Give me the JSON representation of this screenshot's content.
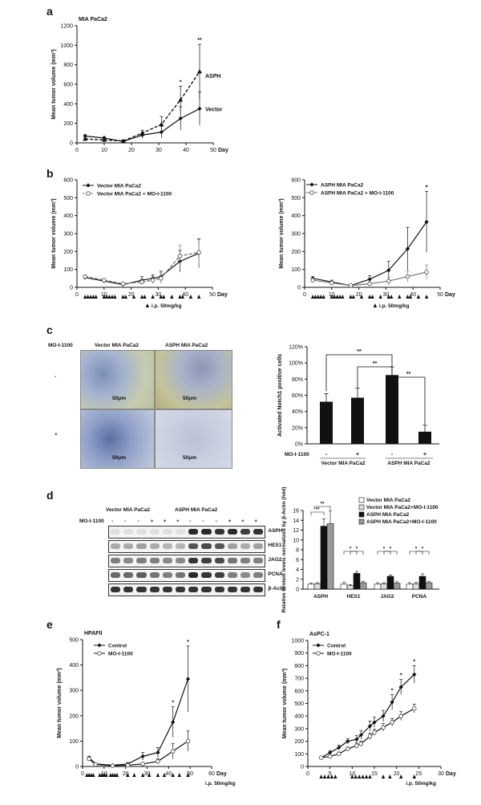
{
  "panels": {
    "a": "a",
    "b": "b",
    "c": "c",
    "d": "d",
    "e": "e",
    "f": "f"
  },
  "common": {
    "mean_tumor_volume": "Mean tumor volume (mm³)",
    "day": "Day",
    "ip_dose": "i.p. 50mg/kg",
    "star": "*",
    "two_star": "**",
    "minus": "-",
    "plus": "+"
  },
  "chart_data": [
    {
      "id": "a",
      "type": "line",
      "title": "MIA PaCa2",
      "xlabel": "Day",
      "ylabel": "Mean tumor volume (mm³)",
      "xlim": [
        0,
        50
      ],
      "ylim": [
        0,
        1200
      ],
      "xticks": [
        0,
        10,
        20,
        30,
        40,
        50
      ],
      "yticks": [
        0,
        200,
        400,
        600,
        800,
        1000,
        1200
      ],
      "series": [
        {
          "name": "ASPH",
          "style": "dashed",
          "marker": "triangle",
          "x": [
            3,
            10,
            17,
            24,
            31,
            38,
            45
          ],
          "y": [
            40,
            30,
            20,
            100,
            190,
            440,
            730
          ],
          "err": [
            10,
            10,
            10,
            30,
            80,
            140,
            280
          ]
        },
        {
          "name": "Vector",
          "style": "solid",
          "marker": "diamond",
          "x": [
            3,
            10,
            17,
            24,
            31,
            38,
            45
          ],
          "y": [
            70,
            50,
            15,
            80,
            110,
            250,
            350
          ],
          "err": [
            15,
            15,
            5,
            30,
            60,
            120,
            170
          ]
        }
      ],
      "annotations": [
        {
          "x": 38,
          "text": "*"
        },
        {
          "x": 45,
          "text": "**"
        }
      ]
    },
    {
      "id": "b1",
      "type": "line",
      "xlabel": "Day",
      "ylabel": "Mean tumor volume (mm³)",
      "xlim": [
        0,
        50
      ],
      "ylim": [
        0,
        600
      ],
      "xticks": [
        0,
        10,
        20,
        30,
        40,
        50
      ],
      "yticks": [
        0,
        100,
        200,
        300,
        400,
        500,
        600
      ],
      "series": [
        {
          "name": "Vector MIA PaCa2",
          "style": "solid",
          "marker": "diamond",
          "x": [
            3,
            10,
            17,
            24,
            28,
            31,
            38,
            45
          ],
          "y": [
            55,
            35,
            15,
            40,
            50,
            60,
            145,
            190
          ],
          "err": [
            10,
            8,
            5,
            20,
            20,
            30,
            60,
            80
          ]
        },
        {
          "name": "Vector MIA PaCa2 + MO-I-1100",
          "style": "dashed",
          "marker": "open-circle",
          "x": [
            3,
            10,
            17,
            24,
            28,
            31,
            38,
            45
          ],
          "y": [
            60,
            40,
            20,
            30,
            40,
            50,
            175,
            195
          ],
          "err": [
            10,
            8,
            5,
            15,
            20,
            30,
            60,
            70
          ]
        }
      ]
    },
    {
      "id": "b2",
      "type": "line",
      "xlabel": "Day",
      "ylabel": "Mean tumor volume (mm³)",
      "xlim": [
        0,
        50
      ],
      "ylim": [
        0,
        600
      ],
      "xticks": [
        0,
        10,
        20,
        30,
        40,
        50
      ],
      "yticks": [
        0,
        100,
        200,
        300,
        400,
        500,
        600
      ],
      "series": [
        {
          "name": "ASPH MIA PaCa2",
          "style": "solid",
          "marker": "diamond",
          "x": [
            3,
            10,
            17,
            24,
            31,
            38,
            45
          ],
          "y": [
            50,
            30,
            10,
            45,
            95,
            215,
            365
          ],
          "err": [
            10,
            10,
            5,
            20,
            50,
            120,
            170
          ]
        },
        {
          "name": "ASPH MIA PaCa2 + MO-I-1100",
          "style": "solid",
          "marker": "open-circle",
          "x": [
            3,
            10,
            17,
            24,
            31,
            38,
            45
          ],
          "y": [
            40,
            25,
            10,
            20,
            35,
            60,
            85
          ],
          "err": [
            10,
            8,
            5,
            10,
            20,
            30,
            40
          ]
        }
      ],
      "annotations": [
        {
          "x": 45,
          "text": "*"
        }
      ]
    },
    {
      "id": "c",
      "type": "bar",
      "ylabel": "Activated Notch1 positive cells",
      "ylim": [
        0,
        120
      ],
      "yticks": [
        "0%",
        "20%",
        "40%",
        "60%",
        "80%",
        "100%",
        "120%"
      ],
      "categories": [
        "-",
        "+",
        "-",
        "+"
      ],
      "values": [
        52,
        57,
        85,
        15
      ],
      "err": [
        10,
        12,
        10,
        8
      ],
      "row_label": "MO-I-1100",
      "groups": [
        "Vector MIA PaCa2",
        "ASPH MIA PaCa2"
      ],
      "annotations": [
        "**",
        "**",
        "**"
      ]
    },
    {
      "id": "d",
      "type": "bar",
      "ylabel": "Relative Protein levels normalized by β-Actin (fold)",
      "ylim": [
        0,
        16
      ],
      "yticks": [
        0,
        2,
        4,
        6,
        8,
        10,
        12,
        14,
        16
      ],
      "categories": [
        "ASPH",
        "HES1",
        "JAG2",
        "PCNA"
      ],
      "series": [
        {
          "name": "Vector MIA PaCa2",
          "fill": "white",
          "values": [
            1.0,
            1.0,
            1.0,
            1.0
          ],
          "err": [
            0.2,
            0.4,
            0.3,
            0.3
          ]
        },
        {
          "name": "Vector MIA PaCa2+MO-I-1100",
          "fill": "light",
          "values": [
            1.1,
            0.7,
            1.1,
            1.1
          ],
          "err": [
            0.2,
            0.2,
            0.2,
            0.3
          ]
        },
        {
          "name": "ASPH MIA PaCa2",
          "fill": "black",
          "values": [
            12.8,
            3.2,
            2.6,
            2.6
          ],
          "err": [
            1.5,
            0.4,
            0.3,
            0.5
          ]
        },
        {
          "name": "ASPH MIA PaCa2+MO-I-1100",
          "fill": "hatched",
          "values": [
            13.3,
            1.3,
            1.2,
            1.3
          ],
          "err": [
            2.6,
            0.3,
            0.3,
            0.3
          ]
        }
      ],
      "annotations": [
        "**",
        "**",
        "*",
        "*",
        "*",
        "*",
        "*",
        "*"
      ]
    },
    {
      "id": "e",
      "type": "line",
      "title": "HPAFII",
      "xlabel": "Day",
      "ylabel": "Mean tumor volume (mm³)",
      "xlim": [
        0,
        60
      ],
      "ylim": [
        0,
        500
      ],
      "xticks": [
        0,
        10,
        20,
        30,
        40,
        50,
        60
      ],
      "yticks": [
        0,
        100,
        200,
        300,
        400,
        500
      ],
      "series": [
        {
          "name": "Control",
          "style": "solid",
          "marker": "diamond",
          "x": [
            3,
            6,
            14,
            21,
            28,
            35,
            42,
            49
          ],
          "y": [
            35,
            10,
            5,
            10,
            40,
            55,
            175,
            345
          ],
          "err": [
            5,
            3,
            3,
            5,
            15,
            20,
            60,
            130
          ]
        },
        {
          "name": "MO-I-1100",
          "style": "solid",
          "marker": "open-circle",
          "x": [
            3,
            6,
            14,
            21,
            28,
            35,
            42,
            49
          ],
          "y": [
            30,
            8,
            3,
            5,
            10,
            20,
            60,
            100
          ],
          "err": [
            5,
            3,
            2,
            3,
            5,
            10,
            30,
            40
          ]
        }
      ],
      "annotations": [
        {
          "x": 42,
          "text": "*"
        },
        {
          "x": 49,
          "text": "*"
        }
      ]
    },
    {
      "id": "f",
      "type": "line",
      "title": "AsPC-1",
      "xlabel": "Day",
      "ylabel": "Mean tumor volume (mm³)",
      "xlim": [
        0,
        30
      ],
      "ylim": [
        0,
        1000
      ],
      "xticks": [
        0,
        5,
        10,
        15,
        20,
        25,
        30
      ],
      "yticks": [
        0,
        100,
        200,
        300,
        400,
        500,
        600,
        700,
        800,
        900,
        1000
      ],
      "series": [
        {
          "name": "Control",
          "style": "solid",
          "marker": "diamond",
          "x": [
            3,
            5,
            7,
            9,
            11,
            12,
            14,
            15,
            17,
            19,
            21,
            24
          ],
          "y": [
            70,
            110,
            150,
            200,
            215,
            250,
            320,
            350,
            400,
            510,
            630,
            730
          ],
          "err": [
            10,
            15,
            20,
            20,
            30,
            35,
            40,
            40,
            45,
            60,
            60,
            70
          ]
        },
        {
          "name": "MO-I-1100",
          "style": "solid",
          "marker": "open-circle",
          "x": [
            3,
            5,
            7,
            9,
            11,
            12,
            14,
            15,
            17,
            19,
            21,
            24
          ],
          "y": [
            70,
            80,
            100,
            140,
            165,
            180,
            240,
            270,
            310,
            350,
            400,
            460
          ],
          "err": [
            10,
            10,
            15,
            15,
            20,
            20,
            25,
            25,
            30,
            30,
            35,
            35
          ]
        }
      ],
      "annotations": [
        {
          "x": 19,
          "text": "*"
        },
        {
          "x": 21,
          "text": "*"
        },
        {
          "x": 24,
          "text": "*"
        }
      ]
    }
  ],
  "panel_c_micro": {
    "row_label": "MO-I-1100",
    "columns": [
      "Vector MIA PaCa2",
      "ASPH MIA PaCa2"
    ],
    "rows": [
      "-",
      "+"
    ],
    "scalebar": "50μm"
  },
  "panel_d_blot": {
    "groups": [
      "Vector MIA PaCa2",
      "ASPH MIA PaCa2"
    ],
    "row_label": "MO-I-1100",
    "treatment": [
      "-",
      "-",
      "-",
      "+",
      "+",
      "+",
      "-",
      "-",
      "-",
      "+",
      "+",
      "+"
    ],
    "proteins": [
      "ASPH",
      "HES1",
      "JAG2",
      "PCNA",
      "β-Actin"
    ]
  }
}
